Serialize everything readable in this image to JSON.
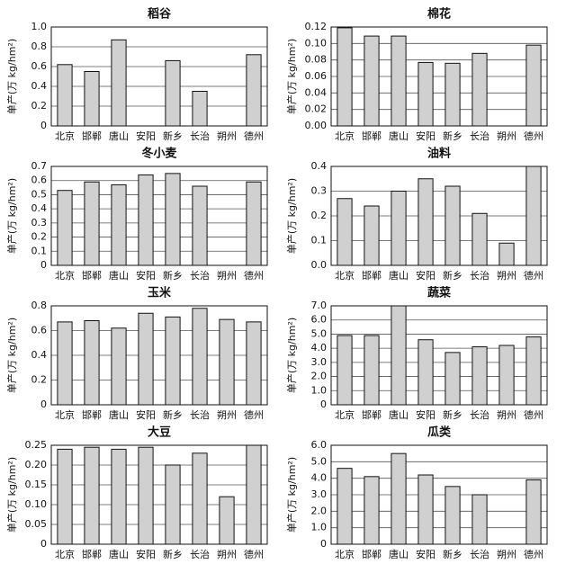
{
  "chart_data": [
    {
      "type": "bar",
      "title": "稻谷",
      "ylabel": "单产(万 kg/hm²)",
      "categories": [
        "北京",
        "邯郸",
        "唐山",
        "安阳",
        "新乡",
        "长治",
        "朔州",
        "德州"
      ],
      "values": [
        0.62,
        0.55,
        0.87,
        null,
        0.66,
        0.35,
        null,
        0.72
      ],
      "color": "#d0d0d0",
      "ylim": [
        0,
        1.0
      ],
      "yticks": [
        0,
        0.2,
        0.4,
        0.6,
        0.8,
        {
          "value": 1,
          "label": "1.0"
        }
      ],
      "grid": true
    },
    {
      "type": "bar",
      "title": "棉花",
      "ylabel": "单产(万 kg/hm²)",
      "categories": [
        "北京",
        "邯郸",
        "唐山",
        "安阳",
        "新乡",
        "长治",
        "朔州",
        "德州"
      ],
      "values": [
        0.119,
        0.109,
        0.109,
        0.077,
        0.076,
        0.088,
        null,
        0.098
      ],
      "color": "#d0d0d0",
      "ylim": [
        0,
        0.12
      ],
      "yticks": [
        {
          "value": 0,
          "label": "0.00"
        },
        0.02,
        0.04,
        0.06,
        0.08,
        {
          "value": 0.1,
          "label": "0.10"
        },
        0.12
      ],
      "grid": true
    },
    {
      "type": "bar",
      "title": "冬小麦",
      "ylabel": "单产(万 kg/hm²)",
      "categories": [
        "北京",
        "邯郸",
        "唐山",
        "安阳",
        "新乡",
        "长治",
        "朔州",
        "德州"
      ],
      "values": [
        0.53,
        0.59,
        0.57,
        0.64,
        0.65,
        0.56,
        null,
        0.59
      ],
      "color": "#d0d0d0",
      "ylim": [
        0,
        0.7
      ],
      "yticks": [
        0,
        0.1,
        0.2,
        0.3,
        0.4,
        0.5,
        0.6,
        0.7
      ],
      "grid": true
    },
    {
      "type": "bar",
      "title": "油料",
      "ylabel": "单产(万 kg/hm²)",
      "categories": [
        "北京",
        "邯郸",
        "唐山",
        "安阳",
        "新乡",
        "长治",
        "朔州",
        "德州"
      ],
      "values": [
        0.27,
        0.24,
        0.3,
        0.35,
        0.32,
        0.21,
        0.09,
        0.4
      ],
      "color": "#d0d0d0",
      "ylim": [
        0,
        0.4
      ],
      "yticks": [
        {
          "value": 0,
          "label": "0.0"
        },
        0.1,
        0.2,
        0.3,
        0.4
      ],
      "grid": true
    },
    {
      "type": "bar",
      "title": "玉米",
      "ylabel": "单产(万 kg/hm²)",
      "categories": [
        "北京",
        "邯郸",
        "唐山",
        "安阳",
        "新乡",
        "长治",
        "朔州",
        "德州"
      ],
      "values": [
        0.67,
        0.68,
        0.62,
        0.74,
        0.71,
        0.78,
        0.69,
        0.67
      ],
      "color": "#d0d0d0",
      "ylim": [
        0,
        0.8
      ],
      "yticks": [
        0,
        0.2,
        0.4,
        0.6,
        0.8
      ],
      "grid": true
    },
    {
      "type": "bar",
      "title": "蔬菜",
      "ylabel": "单产(万 kg/hm²)",
      "categories": [
        "北京",
        "邯郸",
        "唐山",
        "安阳",
        "新乡",
        "长治",
        "朔州",
        "德州"
      ],
      "values": [
        4.9,
        4.9,
        7.0,
        4.6,
        3.7,
        4.1,
        4.2,
        4.8
      ],
      "color": "#d0d0d0",
      "ylim": [
        0,
        7.0
      ],
      "yticks": [
        0,
        {
          "value": 1,
          "label": "1.0"
        },
        {
          "value": 2,
          "label": "2.0"
        },
        {
          "value": 3,
          "label": "3.0"
        },
        {
          "value": 4,
          "label": "4.0"
        },
        {
          "value": 5,
          "label": "5.0"
        },
        {
          "value": 6,
          "label": "6.0"
        },
        {
          "value": 7,
          "label": "7.0"
        }
      ],
      "grid": true
    },
    {
      "type": "bar",
      "title": "大豆",
      "ylabel": "单产(万 kg/hm²)",
      "categories": [
        "北京",
        "邯郸",
        "唐山",
        "安阳",
        "新乡",
        "长治",
        "朔州",
        "德州"
      ],
      "values": [
        0.24,
        0.245,
        0.24,
        0.245,
        0.2,
        0.23,
        0.12,
        0.25
      ],
      "color": "#d0d0d0",
      "ylim": [
        0,
        0.25
      ],
      "yticks": [
        0,
        0.05,
        {
          "value": 0.1,
          "label": "0.10"
        },
        0.15,
        {
          "value": 0.2,
          "label": "0.20"
        },
        0.25
      ],
      "grid": true
    },
    {
      "type": "bar",
      "title": "瓜类",
      "ylabel": "单产(万 kg/hm²)",
      "categories": [
        "北京",
        "邯郸",
        "唐山",
        "安阳",
        "新乡",
        "长治",
        "朔州",
        "德州"
      ],
      "values": [
        4.6,
        4.1,
        5.5,
        4.2,
        3.5,
        3.0,
        null,
        3.9
      ],
      "color": "#d0d0d0",
      "ylim": [
        0,
        6.0
      ],
      "yticks": [
        0,
        {
          "value": 1,
          "label": "1.0"
        },
        {
          "value": 2,
          "label": "2.0"
        },
        {
          "value": 3,
          "label": "3.0"
        },
        {
          "value": 4,
          "label": "4.0"
        },
        {
          "value": 5,
          "label": "5.0"
        },
        {
          "value": 6,
          "label": "6.0"
        }
      ],
      "grid": true
    }
  ]
}
